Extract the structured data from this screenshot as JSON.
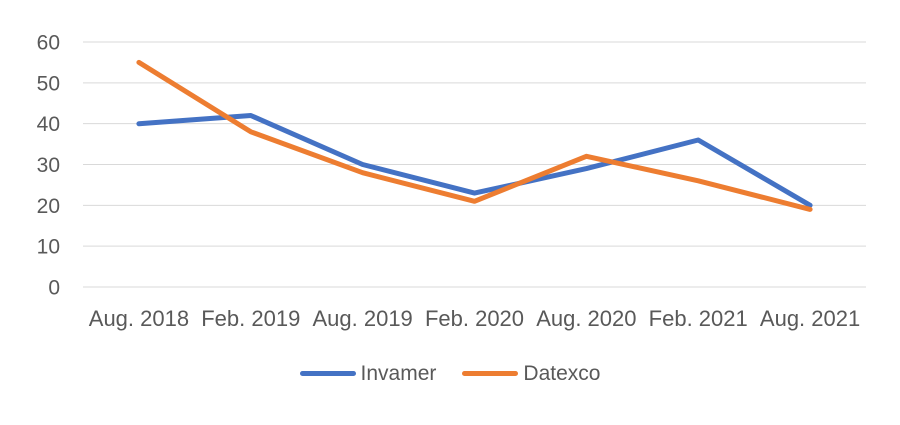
{
  "chart_data": {
    "type": "line",
    "title": "",
    "xlabel": "",
    "ylabel": "",
    "categories": [
      "Aug. 2018",
      "Feb. 2019",
      "Aug. 2019",
      "Feb. 2020",
      "Aug. 2020",
      "Feb. 2021",
      "Aug. 2021"
    ],
    "series": [
      {
        "name": "Invamer",
        "color": "#4472C4",
        "values": [
          40,
          42,
          30,
          23,
          29,
          36,
          20
        ]
      },
      {
        "name": "Datexco",
        "color": "#ED7D31",
        "values": [
          55,
          38,
          28,
          21,
          32,
          26,
          19
        ]
      }
    ],
    "y_ticks": [
      0,
      10,
      20,
      30,
      40,
      50,
      60
    ],
    "ylim": [
      0,
      60
    ],
    "grid": true,
    "legend_position": "bottom"
  },
  "colors": {
    "gridline": "#D9D9D9",
    "tick_text": "#595959",
    "background": "#ffffff"
  }
}
